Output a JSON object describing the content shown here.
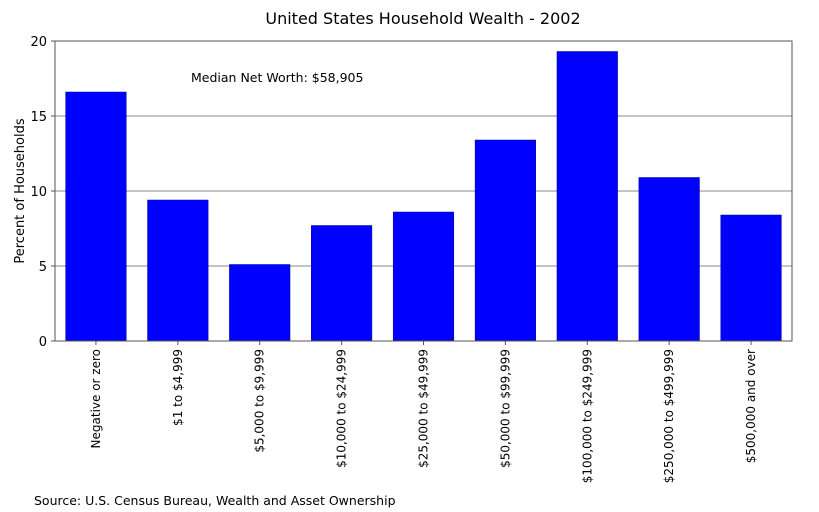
{
  "chart_data": {
    "type": "bar",
    "title": "United States Household Wealth - 2002",
    "xlabel": "",
    "ylabel": "Percent of Households",
    "ylim": [
      0,
      20
    ],
    "yticks": [
      0,
      5,
      10,
      15,
      20
    ],
    "grid": "horizontal",
    "bar_color": "#0000ff",
    "categories": [
      "Negative or zero",
      "$1 to $4,999",
      "$5,000 to $9,999",
      "$10,000 to $24,999",
      "$25,000 to $49,999",
      "$50,000 to $99,999",
      "$100,000 to $249,999",
      "$250,000 to $499,999",
      "$500,000 and over"
    ],
    "values": [
      16.6,
      9.4,
      5.1,
      7.7,
      8.6,
      13.4,
      19.3,
      10.9,
      8.4
    ],
    "annotation": "Median Net Worth: $58,905",
    "source": "Source: U.S. Census Bureau, Wealth and Asset Ownership"
  }
}
